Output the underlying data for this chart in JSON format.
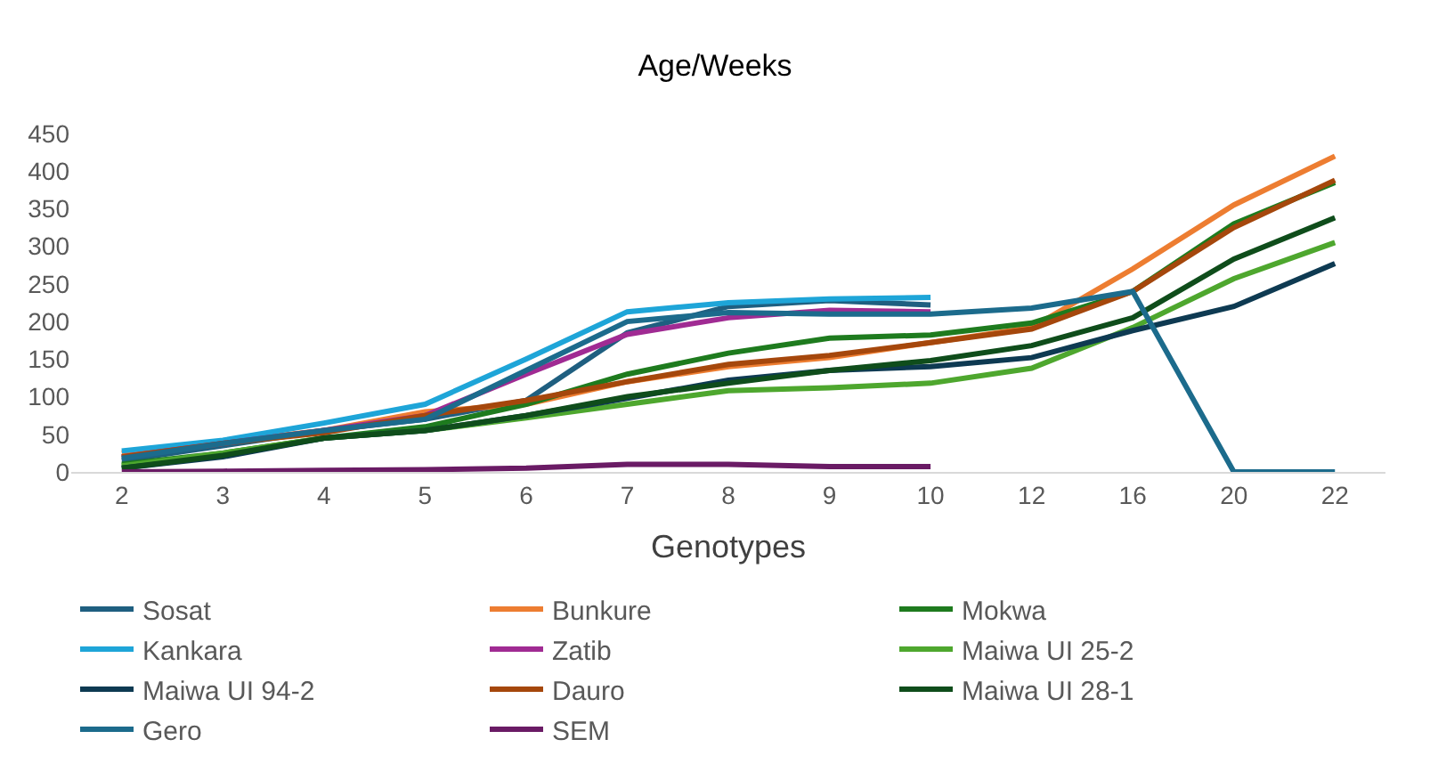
{
  "chart_data": {
    "type": "line",
    "title": "Age/Weeks",
    "xlabel": "Genotypes",
    "categories": [
      "2",
      "3",
      "4",
      "5",
      "6",
      "7",
      "8",
      "9",
      "10",
      "12",
      "16",
      "20",
      "22"
    ],
    "ylim": [
      0,
      450
    ],
    "yticks": [
      0,
      50,
      100,
      150,
      200,
      250,
      300,
      350,
      400,
      450
    ],
    "grid": false,
    "legend": "bottom",
    "marker": "none",
    "line_style": "solid",
    "series": [
      {
        "name": "Sosat",
        "color": "#1f5f80",
        "values": [
          15,
          35,
          55,
          70,
          95,
          185,
          220,
          228,
          222,
          null,
          null,
          null,
          null
        ]
      },
      {
        "name": "Bunkure",
        "color": "#ed7d31",
        "values": [
          25,
          40,
          55,
          80,
          90,
          120,
          140,
          152,
          172,
          192,
          270,
          355,
          420
        ]
      },
      {
        "name": "Mokwa",
        "color": "#1e7b1e",
        "values": [
          10,
          25,
          45,
          60,
          90,
          130,
          158,
          178,
          182,
          198,
          240,
          330,
          385
        ]
      },
      {
        "name": "Kankara",
        "color": "#1ea5d8",
        "values": [
          28,
          42,
          65,
          90,
          150,
          213,
          225,
          230,
          232,
          null,
          null,
          null,
          null
        ]
      },
      {
        "name": "Zatib",
        "color": "#a02b93",
        "values": [
          20,
          38,
          55,
          75,
          130,
          183,
          205,
          215,
          213,
          null,
          null,
          null,
          null
        ]
      },
      {
        "name": "Maiwa UI 25-2",
        "color": "#4ea72e",
        "values": [
          8,
          25,
          45,
          55,
          72,
          90,
          108,
          112,
          118,
          138,
          192,
          257,
          305
        ]
      },
      {
        "name": "Maiwa UI 94-2",
        "color": "#0e3a52",
        "values": [
          5,
          20,
          45,
          55,
          75,
          98,
          122,
          135,
          140,
          152,
          188,
          220,
          277
        ]
      },
      {
        "name": "Dauro",
        "color": "#a5470c",
        "values": [
          20,
          38,
          52,
          75,
          95,
          120,
          143,
          155,
          172,
          190,
          240,
          325,
          388
        ]
      },
      {
        "name": "Maiwa UI 28-1",
        "color": "#0f4d1b",
        "values": [
          5,
          22,
          45,
          55,
          75,
          100,
          118,
          135,
          148,
          168,
          205,
          283,
          338
        ]
      },
      {
        "name": "Gero",
        "color": "#1c6b8c",
        "values": [
          18,
          38,
          55,
          70,
          135,
          200,
          212,
          210,
          210,
          218,
          240,
          0,
          0
        ]
      },
      {
        "name": "SEM",
        "color": "#6a1b65",
        "values": [
          0,
          1,
          2,
          3,
          5,
          10,
          10,
          7,
          7,
          null,
          null,
          null,
          null
        ]
      }
    ]
  }
}
